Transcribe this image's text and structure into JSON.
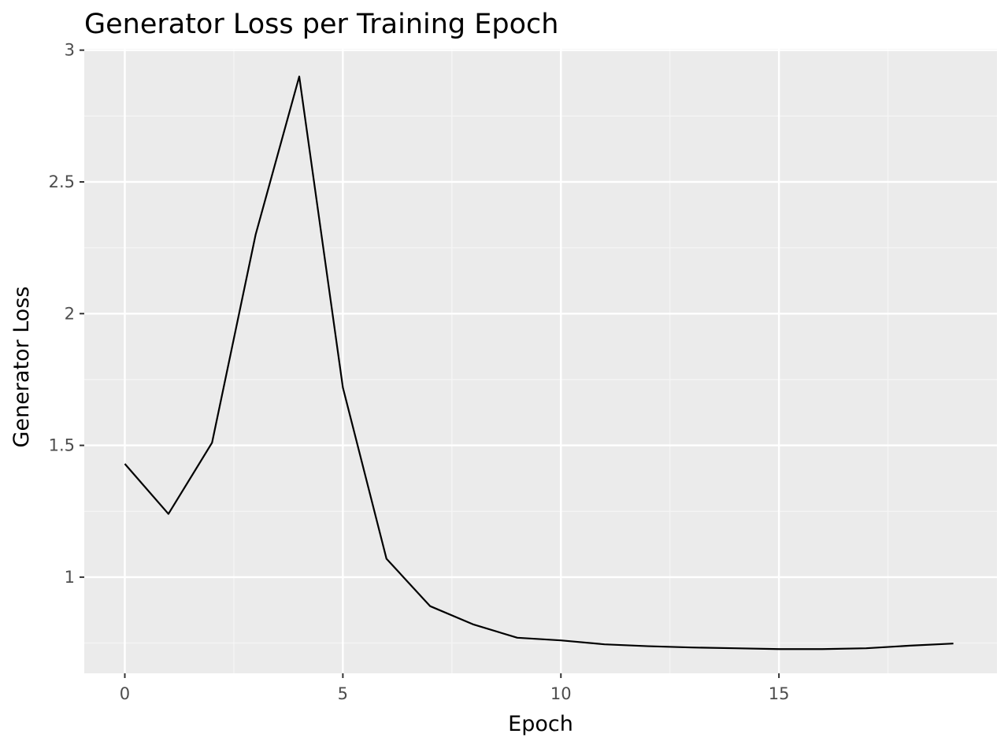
{
  "chart_data": {
    "type": "line",
    "title": "Generator Loss per Training Epoch",
    "xlabel": "Epoch",
    "ylabel": "Generator Loss",
    "xlim": [
      -0.93,
      20.0
    ],
    "ylim": [
      0.635,
      3.005
    ],
    "x_ticks": [
      0,
      5,
      10,
      15
    ],
    "x_tick_labels": [
      "0",
      "5",
      "10",
      "15"
    ],
    "y_ticks": [
      1,
      1.5,
      2,
      2.5,
      3
    ],
    "y_tick_labels": [
      "1",
      "1.5",
      "2",
      "2.5",
      "3"
    ],
    "x_minor_ticks": [
      2.5,
      7.5,
      12.5,
      17.5
    ],
    "y_minor_ticks": [
      0.75,
      1.25,
      1.75,
      2.25,
      2.75
    ],
    "grid": true,
    "legend": "none",
    "series": [
      {
        "x": [
          0,
          1,
          2,
          3,
          4,
          5,
          6,
          7,
          8,
          9,
          10,
          11,
          12,
          13,
          14,
          15,
          16,
          17,
          18,
          19
        ],
        "values": [
          1.43,
          1.24,
          1.51,
          2.3,
          2.9,
          1.72,
          1.07,
          0.89,
          0.82,
          0.77,
          0.76,
          0.745,
          0.738,
          0.733,
          0.73,
          0.727,
          0.727,
          0.73,
          0.74,
          0.748
        ],
        "color": "#000000"
      }
    ],
    "colors": {
      "panel_background": "#ebebeb",
      "grid_major": "#ffffff",
      "grid_minor": "#f5f5f5",
      "tick_label": "#4d4d4d",
      "tick_mark": "#333333"
    }
  }
}
